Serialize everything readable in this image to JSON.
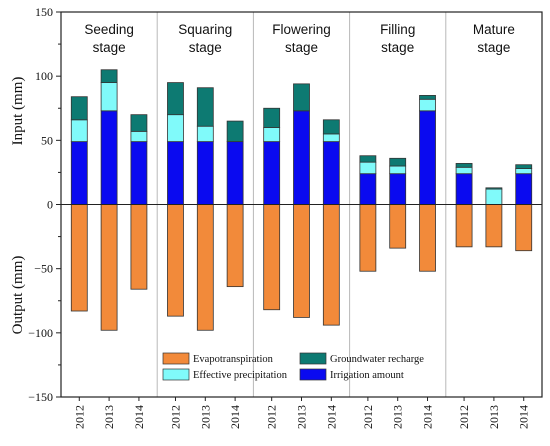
{
  "chart_data": {
    "type": "bar",
    "stacked": true,
    "categories": [
      "2012",
      "2013",
      "2014",
      "2012",
      "2013",
      "2014",
      "2012",
      "2013",
      "2014",
      "2012",
      "2013",
      "2014",
      "2012",
      "2013",
      "2014"
    ],
    "stages": [
      {
        "label_lines": [
          "Seeding",
          "stage"
        ]
      },
      {
        "label_lines": [
          "Squaring",
          "stage"
        ]
      },
      {
        "label_lines": [
          "Flowering",
          "stage"
        ]
      },
      {
        "label_lines": [
          "Filling",
          "stage"
        ]
      },
      {
        "label_lines": [
          "Mature",
          "stage"
        ]
      }
    ],
    "series": [
      {
        "name": "Irrigation amount",
        "color": "#0a0af0",
        "values": [
          49,
          73,
          49,
          49,
          49,
          49,
          49,
          73,
          49,
          24,
          24,
          73,
          24,
          0,
          24
        ]
      },
      {
        "name": "Effective precipitation",
        "color": "#80fafa",
        "values": [
          17,
          22,
          8,
          21,
          12,
          0,
          11,
          0,
          6,
          9,
          6,
          9,
          5,
          12,
          4
        ]
      },
      {
        "name": "Groundwater recharge",
        "color": "#0d7a72",
        "values": [
          18,
          10,
          13,
          25,
          30,
          16,
          15,
          21,
          11,
          5,
          6,
          3,
          3,
          1,
          3
        ]
      },
      {
        "name": "Evapotranspiration",
        "color": "#f28a3a",
        "values": [
          -83,
          -98,
          -66,
          -87,
          -98,
          -64,
          -82,
          -88,
          -94,
          -52,
          -34,
          -52,
          -33,
          -33,
          -36
        ]
      }
    ],
    "ylim": [
      -150,
      150
    ],
    "yticks": [
      -150,
      -100,
      -50,
      0,
      50,
      100,
      150
    ],
    "ylabel_top": "Input (mm)",
    "ylabel_bottom": "Output (mm)",
    "legend": {
      "placement": "bottom-center",
      "items": [
        {
          "label": "Evapotranspiration",
          "color": "#f28a3a"
        },
        {
          "label": "Groundwater recharge",
          "color": "#0d7a72"
        },
        {
          "label": "Effective precipitation",
          "color": "#80fafa"
        },
        {
          "label": "Irrigation amount",
          "color": "#0a0af0"
        }
      ]
    }
  }
}
